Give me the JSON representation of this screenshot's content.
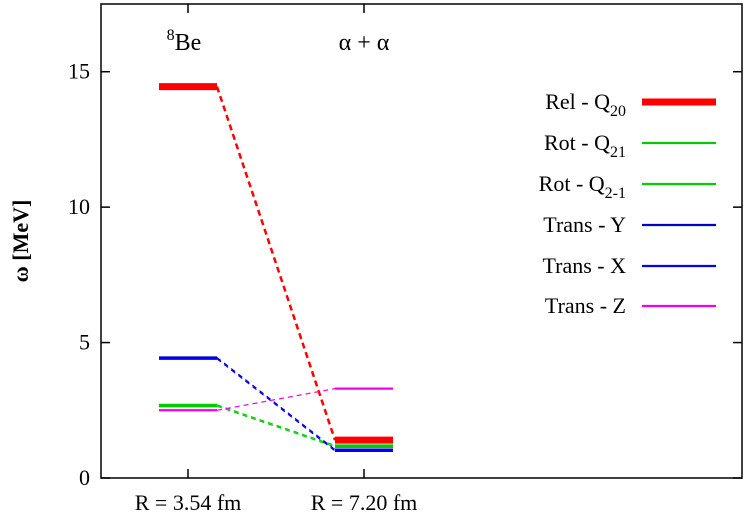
{
  "chart_data": {
    "type": "line",
    "title": "",
    "xlabel": "",
    "ylabel": "ω [MeV]",
    "ylim": [
      0,
      17.5
    ],
    "yticks": [
      0,
      5,
      10,
      15
    ],
    "grid": false,
    "legend_position": "right",
    "columns": [
      {
        "x_label": "R = 3.54 fm",
        "top_label_base": "Be",
        "top_label_sup": "8"
      },
      {
        "x_label": "R = 7.20 fm",
        "top_label_base": "α + α",
        "top_label_sup": ""
      }
    ],
    "series": [
      {
        "label_base": "Rel - Q",
        "label_sub": "20",
        "color": "#ff0000",
        "emphasis": "thick",
        "values": [
          14.45,
          1.4
        ]
      },
      {
        "label_base": "Rot - Q",
        "label_sub": "21",
        "color": "#00cc00",
        "emphasis": "thin",
        "values": [
          2.7,
          1.2
        ]
      },
      {
        "label_base": "Rot - Q",
        "label_sub": "2-1",
        "color": "#00cc00",
        "emphasis": "thin",
        "values": [
          2.65,
          1.15
        ]
      },
      {
        "label_base": "Trans - Y",
        "label_sub": "",
        "color": "#0000cc",
        "emphasis": "thin",
        "values": [
          4.45,
          1.05
        ]
      },
      {
        "label_base": "Trans - X",
        "label_sub": "",
        "color": "#0000ff",
        "emphasis": "thin",
        "values": [
          4.4,
          1.0
        ]
      },
      {
        "label_base": "Trans - Z",
        "label_sub": "",
        "color": "#ee00ee",
        "emphasis": "thin",
        "values": [
          2.5,
          3.3
        ]
      }
    ]
  }
}
